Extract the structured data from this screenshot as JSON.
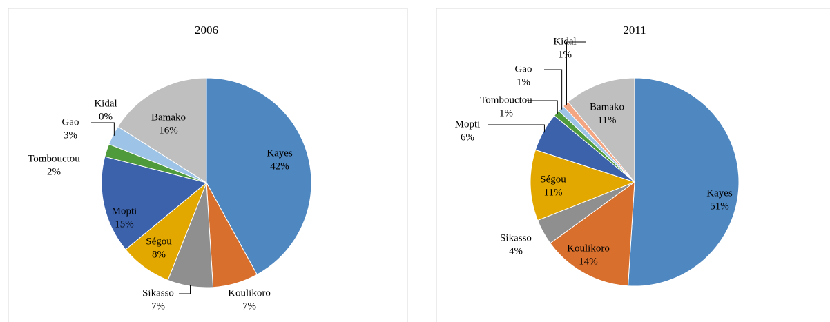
{
  "chart_data": [
    {
      "type": "pie",
      "title": "2006",
      "categories": [
        "Kayes",
        "Koulikoro",
        "Sikasso",
        "Ségou",
        "Mopti",
        "Tombouctou",
        "Gao",
        "Kidal",
        "Bamako"
      ],
      "values": [
        42,
        7,
        7,
        8,
        15,
        2,
        3,
        0,
        16
      ],
      "value_labels": [
        "42%",
        "7%",
        "7%",
        "8%",
        "15%",
        "2%",
        "3%",
        "0%",
        "16%"
      ],
      "colors": [
        "#4f87c0",
        "#d86f2d",
        "#8f8f8f",
        "#e3a800",
        "#3c62ac",
        "#4f9b3b",
        "#9dc3e6",
        "#f4a582",
        "#bfbfbf"
      ]
    },
    {
      "type": "pie",
      "title": "2011",
      "categories": [
        "Kayes",
        "Koulikoro",
        "Sikasso",
        "Ségou",
        "Mopti",
        "Tombouctou",
        "Gao",
        "Kidal",
        "Bamako"
      ],
      "values": [
        51,
        14,
        4,
        11,
        6,
        1,
        1,
        1,
        11
      ],
      "value_labels": [
        "51%",
        "14%",
        "4%",
        "11%",
        "6%",
        "1%",
        "1%",
        "1%",
        "11%"
      ],
      "colors": [
        "#4f87c0",
        "#d86f2d",
        "#8f8f8f",
        "#e3a800",
        "#3c62ac",
        "#4f9b3b",
        "#9dc3e6",
        "#f4a582",
        "#bfbfbf"
      ]
    }
  ]
}
